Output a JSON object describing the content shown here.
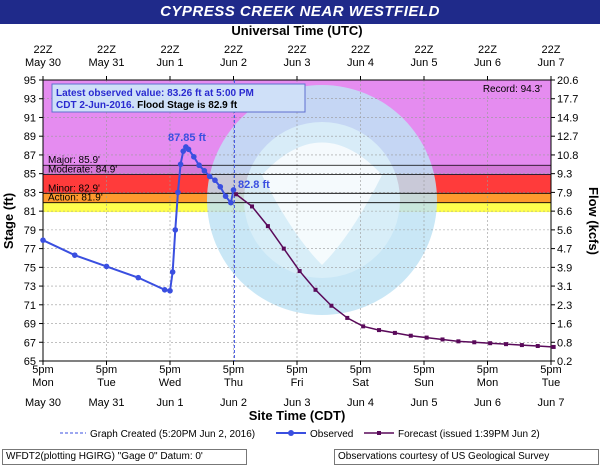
{
  "title": "CYPRESS CREEK NEAR WESTFIELD",
  "top_axis_title": "Universal Time (UTC)",
  "bottom_axis_title": "Site Time (CDT)",
  "left_axis_title": "Stage (ft)",
  "right_axis_title": "Flow (kcfs)",
  "info_box": {
    "line1": "Latest observed value: 83.26 ft at 5:00 PM",
    "line2a": "CDT 2-Jun-2016. ",
    "line2b": "Flood Stage is 82.9 ft"
  },
  "record_label": "Record: 94.3'",
  "peak_label": "87.85 ft",
  "latest_label": "82.8 ft",
  "legend": {
    "graph_created": "Graph Created (5:20PM Jun 2, 2016)",
    "observed": "Observed",
    "forecast": "Forecast (issued 1:39PM Jun 2)"
  },
  "footer_left": "WFDT2(plotting HGIRG) \"Gage 0\" Datum: 0'",
  "footer_right": "Observations courtesy of US Geological Survey",
  "colors": {
    "observed": "#3a4fe0",
    "forecast": "#5a0a5a",
    "record_band": "#e58cf0",
    "major_band": "#d37ad8",
    "moderate_band": "#ff3b3b",
    "minor_band": "#ff9a2e",
    "action_band": "#ffff4d"
  },
  "chart_data": {
    "type": "line",
    "title": "CYPRESS CREEK NEAR WESTFIELD",
    "xlabel": "Site Time (CDT)",
    "ylabel": "Stage (ft)",
    "y2label": "Flow (kcfs)",
    "ylim": [
      65,
      95
    ],
    "y_ticks": [
      65,
      67,
      69,
      71,
      73,
      75,
      77,
      79,
      81,
      83,
      85,
      87,
      89,
      91,
      93,
      95
    ],
    "y2_ticks": [
      "0.2",
      "0.8",
      "1.6",
      "2.3",
      "3.1",
      "3.9",
      "4.7",
      "5.6",
      "6.6",
      "7.9",
      "9.3",
      "10.8",
      "12.7",
      "14.9",
      "17.7",
      "20.6"
    ],
    "x_ticks_bottom": [
      {
        "time": "5pm",
        "day": "Mon",
        "date": "May 30"
      },
      {
        "time": "5pm",
        "day": "Tue",
        "date": "May 31"
      },
      {
        "time": "5pm",
        "day": "Wed",
        "date": "Jun 1"
      },
      {
        "time": "5pm",
        "day": "Thu",
        "date": "Jun 2"
      },
      {
        "time": "5pm",
        "day": "Fri",
        "date": "Jun 3"
      },
      {
        "time": "5pm",
        "day": "Sat",
        "date": "Jun 4"
      },
      {
        "time": "5pm",
        "day": "Sun",
        "date": "Jun 5"
      },
      {
        "time": "5pm",
        "day": "Mon",
        "date": "Jun 6"
      },
      {
        "time": "5pm",
        "day": "Tue",
        "date": "Jun 7"
      }
    ],
    "x_ticks_top": [
      {
        "time": "22Z",
        "date": "May 30"
      },
      {
        "time": "22Z",
        "date": "May 31"
      },
      {
        "time": "22Z",
        "date": "Jun 1"
      },
      {
        "time": "22Z",
        "date": "Jun 2"
      },
      {
        "time": "22Z",
        "date": "Jun 3"
      },
      {
        "time": "22Z",
        "date": "Jun 4"
      },
      {
        "time": "22Z",
        "date": "Jun 5"
      },
      {
        "time": "22Z",
        "date": "Jun 6"
      },
      {
        "time": "22Z",
        "date": "Jun 7"
      }
    ],
    "flood_categories": [
      {
        "name": "Major",
        "label": "Major: 85.9'",
        "stage": 85.9
      },
      {
        "name": "Moderate",
        "label": "Moderate: 84.9'",
        "stage": 84.9
      },
      {
        "name": "Minor",
        "label": "Minor: 82.9'",
        "stage": 82.9
      },
      {
        "name": "Action",
        "label": "Action: 81.9'",
        "stage": 81.9
      }
    ],
    "record_stage": 94.3,
    "graph_created_time": "2016-06-02 17:20",
    "series": [
      {
        "name": "Observed",
        "type": "line",
        "x": [
          "2016-05-30 17:00",
          "2016-05-31 05:00",
          "2016-05-31 17:00",
          "2016-06-01 05:00",
          "2016-06-01 15:00",
          "2016-06-01 17:00",
          "2016-06-01 18:00",
          "2016-06-01 19:00",
          "2016-06-01 20:00",
          "2016-06-01 21:00",
          "2016-06-01 22:00",
          "2016-06-01 23:00",
          "2016-06-02 00:00",
          "2016-06-02 02:00",
          "2016-06-02 04:00",
          "2016-06-02 06:00",
          "2016-06-02 08:00",
          "2016-06-02 10:00",
          "2016-06-02 12:00",
          "2016-06-02 14:00",
          "2016-06-02 16:00",
          "2016-06-02 17:00"
        ],
        "y": [
          77.9,
          76.3,
          75.1,
          73.9,
          72.6,
          72.5,
          74.5,
          79.0,
          83.0,
          86.0,
          87.4,
          87.85,
          87.6,
          86.8,
          85.9,
          85.3,
          84.7,
          84.3,
          83.6,
          82.6,
          81.9,
          83.26
        ]
      },
      {
        "name": "Forecast",
        "type": "line",
        "x": [
          "2016-06-02 18:00",
          "2016-06-03 00:00",
          "2016-06-03 06:00",
          "2016-06-03 12:00",
          "2016-06-03 18:00",
          "2016-06-04 00:00",
          "2016-06-04 06:00",
          "2016-06-04 12:00",
          "2016-06-04 18:00",
          "2016-06-05 00:00",
          "2016-06-05 06:00",
          "2016-06-05 12:00",
          "2016-06-05 18:00",
          "2016-06-06 00:00",
          "2016-06-06 06:00",
          "2016-06-06 12:00",
          "2016-06-06 18:00",
          "2016-06-07 00:00",
          "2016-06-07 06:00",
          "2016-06-07 12:00",
          "2016-06-07 18:00"
        ],
        "y": [
          82.8,
          81.5,
          79.4,
          77.0,
          74.6,
          72.6,
          70.9,
          69.6,
          68.7,
          68.3,
          68.0,
          67.7,
          67.5,
          67.3,
          67.1,
          67.0,
          66.9,
          66.8,
          66.7,
          66.6,
          66.5
        ]
      }
    ],
    "annotations": [
      {
        "text": "87.85 ft",
        "x": "2016-06-01 23:00",
        "y": 87.85
      },
      {
        "text": "82.8 ft",
        "x": "2016-06-02 18:00",
        "y": 82.8
      }
    ]
  }
}
